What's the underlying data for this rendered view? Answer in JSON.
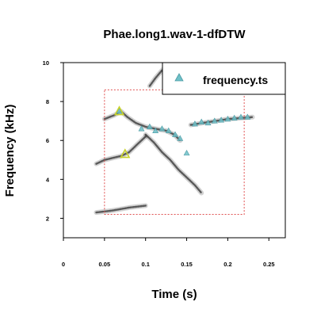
{
  "chart_data": {
    "type": "scatter",
    "title": "Phae.long1.wav-1-dfDTW",
    "xlabel": "Time (s)",
    "ylabel": "Frequency (kHz)",
    "xlim": [
      0,
      0.27
    ],
    "ylim": [
      1,
      10
    ],
    "x_ticks": [
      0,
      0.05,
      0.1,
      0.15,
      0.2,
      0.25
    ],
    "x_tick_labels": [
      "0",
      "0.05",
      "0.1",
      "0.15",
      "0.2",
      "0.25"
    ],
    "y_ticks": [
      2,
      4,
      6,
      8,
      10
    ],
    "y_tick_labels": [
      "2",
      "4",
      "6",
      "8",
      "10"
    ],
    "grid": false,
    "legend": {
      "position": "top-right",
      "entries": [
        "frequency.ts"
      ]
    },
    "colors": {
      "points": "#6fc0c8",
      "highlight": "#c9d32a",
      "selection_box": "#e05050",
      "spectrogram": "#303030"
    },
    "series": [
      {
        "name": "frequency.ts",
        "x": [
          0.068,
          0.095,
          0.105,
          0.112,
          0.12,
          0.128,
          0.136,
          0.142,
          0.15,
          0.16,
          0.168,
          0.176,
          0.184,
          0.192,
          0.2,
          0.208,
          0.216,
          0.224
        ],
        "y": [
          7.5,
          6.6,
          6.7,
          6.5,
          6.6,
          6.5,
          6.3,
          6.1,
          5.35,
          6.85,
          6.95,
          6.9,
          7.0,
          7.05,
          7.1,
          7.15,
          7.2,
          7.2
        ]
      }
    ],
    "highlighted_points": [
      {
        "x": 0.068,
        "y": 7.5
      },
      {
        "x": 0.075,
        "y": 5.3
      }
    ],
    "selection_region": {
      "x": [
        0.05,
        0.22
      ],
      "y": [
        2.2,
        8.6
      ]
    },
    "spectrogram_segments": [
      {
        "t": [
          0.05,
          0.062,
          0.07,
          0.078,
          0.088,
          0.1,
          0.112,
          0.125,
          0.135,
          0.142
        ],
        "f": [
          7.1,
          7.3,
          7.5,
          7.2,
          6.9,
          6.7,
          6.6,
          6.5,
          6.3,
          6.0
        ]
      },
      {
        "t": [
          0.04,
          0.05,
          0.06,
          0.07,
          0.08,
          0.09,
          0.1
        ],
        "f": [
          4.8,
          5.0,
          5.1,
          5.2,
          5.4,
          5.8,
          6.2
        ]
      },
      {
        "t": [
          0.1,
          0.11,
          0.12,
          0.13,
          0.14,
          0.15,
          0.16,
          0.168
        ],
        "f": [
          6.3,
          5.9,
          5.4,
          5.0,
          4.5,
          4.1,
          3.7,
          3.3
        ]
      },
      {
        "t": [
          0.155,
          0.17,
          0.185,
          0.2,
          0.215,
          0.23
        ],
        "f": [
          6.8,
          6.9,
          7.0,
          7.1,
          7.15,
          7.2
        ]
      },
      {
        "t": [
          0.04,
          0.06,
          0.08,
          0.1
        ],
        "f": [
          2.3,
          2.4,
          2.55,
          2.65
        ]
      },
      {
        "t": [
          0.105,
          0.112,
          0.12,
          0.128
        ],
        "f": [
          8.8,
          9.2,
          9.6,
          9.9
        ]
      }
    ]
  }
}
